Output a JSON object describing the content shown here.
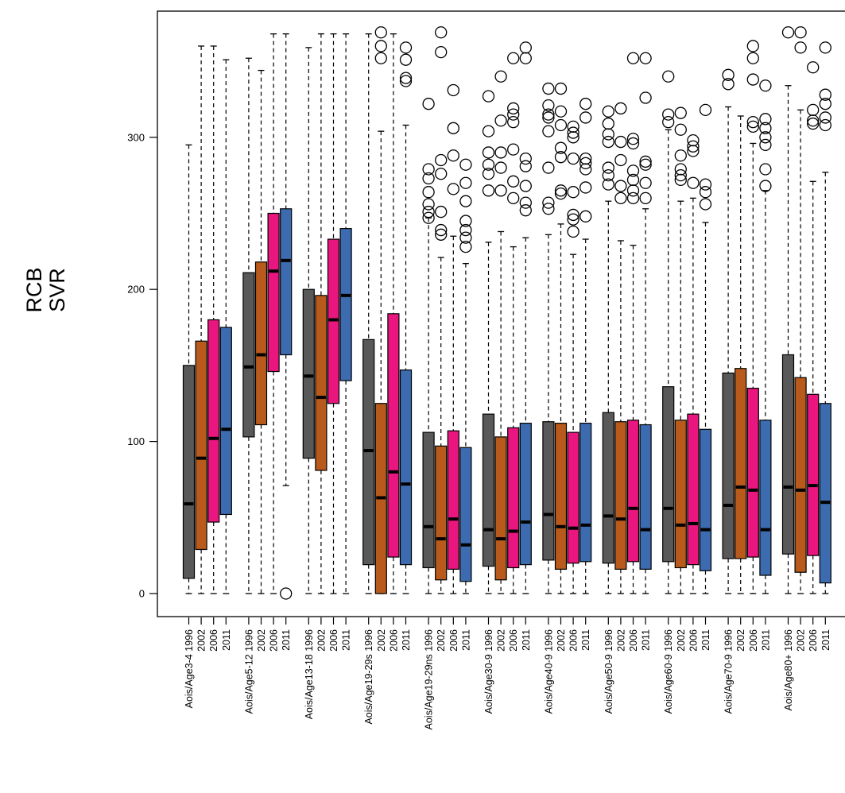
{
  "chart_data": {
    "type": "boxplot",
    "ylabel_lines": [
      "RCB",
      "SVR"
    ],
    "ylim": [
      -15,
      380
    ],
    "yticks": [
      0,
      100,
      200,
      300
    ],
    "series": [
      {
        "name": "1996",
        "color": "#595959"
      },
      {
        "name": "2002",
        "color": "#b85a1b"
      },
      {
        "name": "2006",
        "color": "#e8167e"
      },
      {
        "name": "2011",
        "color": "#3c6bb0"
      }
    ],
    "groups": [
      {
        "label": "Aois/Age3-4",
        "boxes": [
          {
            "year": "1996",
            "lw": 0,
            "q1": 10,
            "med": 59,
            "q3": 150,
            "uw": 295,
            "out": []
          },
          {
            "year": "2002",
            "lw": 0,
            "q1": 29,
            "med": 89,
            "q3": 166,
            "uw": 360,
            "out": []
          },
          {
            "year": "2006",
            "lw": 0,
            "q1": 47,
            "med": 102,
            "q3": 180,
            "uw": 360,
            "out": []
          },
          {
            "year": "2011",
            "lw": 0,
            "q1": 52,
            "med": 108,
            "q3": 175,
            "uw": 351,
            "out": []
          }
        ]
      },
      {
        "label": "Aois/Age5-12",
        "boxes": [
          {
            "year": "1996",
            "lw": 0,
            "q1": 103,
            "med": 149,
            "q3": 211,
            "uw": 352,
            "out": []
          },
          {
            "year": "2002",
            "lw": 0,
            "q1": 111,
            "med": 157,
            "q3": 218,
            "uw": 344,
            "out": []
          },
          {
            "year": "2006",
            "lw": 0,
            "q1": 146,
            "med": 212,
            "q3": 250,
            "uw": 368,
            "out": []
          },
          {
            "year": "2011",
            "lw": 71,
            "q1": 157,
            "med": 219,
            "q3": 253,
            "uw": 368,
            "out": [
              0
            ]
          }
        ]
      },
      {
        "label": "Aois/Age13-18",
        "boxes": [
          {
            "year": "1996",
            "lw": 0,
            "q1": 89,
            "med": 143,
            "q3": 200,
            "uw": 359,
            "out": []
          },
          {
            "year": "2002",
            "lw": 0,
            "q1": 81,
            "med": 129,
            "q3": 196,
            "uw": 368,
            "out": []
          },
          {
            "year": "2006",
            "lw": 0,
            "q1": 125,
            "med": 180,
            "q3": 233,
            "uw": 368,
            "out": []
          },
          {
            "year": "2011",
            "lw": 0,
            "q1": 140,
            "med": 196,
            "q3": 240,
            "uw": 368,
            "out": []
          }
        ]
      },
      {
        "label": "Aois/Age19-29s",
        "boxes": [
          {
            "year": "1996",
            "lw": 0,
            "q1": 19,
            "med": 94,
            "q3": 167,
            "uw": 368,
            "out": []
          },
          {
            "year": "2002",
            "lw": 0,
            "q1": 0,
            "med": 63,
            "q3": 125,
            "uw": 304,
            "out": [
              369,
              360,
              352
            ]
          },
          {
            "year": "2006",
            "lw": 0,
            "q1": 24,
            "med": 80,
            "q3": 184,
            "uw": 368,
            "out": []
          },
          {
            "year": "2011",
            "lw": 0,
            "q1": 19,
            "med": 72,
            "q3": 147,
            "uw": 308,
            "out": [
              359,
              351,
              339,
              337
            ]
          }
        ]
      },
      {
        "label": "Aois/Age19-29ns",
        "boxes": [
          {
            "year": "1996",
            "lw": 0,
            "q1": 17,
            "med": 44,
            "q3": 106,
            "uw": 247,
            "out": [
              322,
              279,
              273,
              264,
              256,
              251,
              247
            ]
          },
          {
            "year": "2002",
            "lw": 0,
            "q1": 9,
            "med": 36,
            "q3": 97,
            "uw": 221,
            "out": [
              369,
              356,
              285,
              276,
              251,
              239,
              236
            ]
          },
          {
            "year": "2006",
            "lw": 0,
            "q1": 16,
            "med": 49,
            "q3": 107,
            "uw": 235,
            "out": [
              331,
              306,
              288,
              266
            ]
          },
          {
            "year": "2011",
            "lw": 0,
            "q1": 8,
            "med": 32,
            "q3": 96,
            "uw": 217,
            "out": [
              282,
              270,
              258,
              245,
              239,
              234,
              228
            ]
          }
        ]
      },
      {
        "label": "Aois/Age30-9",
        "boxes": [
          {
            "year": "1996",
            "lw": 0,
            "q1": 18,
            "med": 42,
            "q3": 118,
            "uw": 231,
            "out": [
              327,
              304,
              290,
              282,
              276,
              265
            ]
          },
          {
            "year": "2002",
            "lw": 0,
            "q1": 9,
            "med": 36,
            "q3": 103,
            "uw": 238,
            "out": [
              340,
              311,
              290,
              280,
              265
            ]
          },
          {
            "year": "2006",
            "lw": 0,
            "q1": 17,
            "med": 41,
            "q3": 109,
            "uw": 228,
            "out": [
              352,
              319,
              315,
              310,
              292,
              271,
              260
            ]
          },
          {
            "year": "2011",
            "lw": 0,
            "q1": 19,
            "med": 47,
            "q3": 112,
            "uw": 234,
            "out": [
              359,
              352,
              286,
              281,
              268,
              257,
              252
            ]
          }
        ]
      },
      {
        "label": "Aois/Age40-9",
        "boxes": [
          {
            "year": "1996",
            "lw": 0,
            "q1": 22,
            "med": 52,
            "q3": 113,
            "uw": 236,
            "out": [
              332,
              321,
              315,
              313,
              304,
              280,
              257,
              253
            ]
          },
          {
            "year": "2002",
            "lw": 0,
            "q1": 16,
            "med": 44,
            "q3": 112,
            "uw": 243,
            "out": [
              332,
              317,
              308,
              293,
              287,
              265,
              263
            ]
          },
          {
            "year": "2006",
            "lw": 0,
            "q1": 20,
            "med": 43,
            "q3": 106,
            "uw": 223,
            "out": [
              307,
              303,
              300,
              286,
              264,
              249,
              246,
              238
            ]
          },
          {
            "year": "2011",
            "lw": 0,
            "q1": 21,
            "med": 45,
            "q3": 112,
            "uw": 233,
            "out": [
              322,
              313,
              286,
              283,
              279,
              267,
              248
            ]
          }
        ]
      },
      {
        "label": "Aois/Age50-9",
        "boxes": [
          {
            "year": "1996",
            "lw": 0,
            "q1": 20,
            "med": 51,
            "q3": 119,
            "uw": 258,
            "out": [
              317,
              309,
              302,
              297,
              280,
              275,
              269
            ]
          },
          {
            "year": "2002",
            "lw": 0,
            "q1": 16,
            "med": 49,
            "q3": 113,
            "uw": 232,
            "out": [
              319,
              297,
              285,
              268,
              260
            ]
          },
          {
            "year": "2006",
            "lw": 0,
            "q1": 21,
            "med": 56,
            "q3": 114,
            "uw": 229,
            "out": [
              352,
              299,
              296,
              278,
              272,
              265,
              260
            ]
          },
          {
            "year": "2011",
            "lw": 0,
            "q1": 16,
            "med": 42,
            "q3": 111,
            "uw": 253,
            "out": [
              352,
              326,
              284,
              282,
              270,
              260
            ]
          }
        ]
      },
      {
        "label": "Aois/Age60-9",
        "boxes": [
          {
            "year": "1996",
            "lw": 0,
            "q1": 21,
            "med": 56,
            "q3": 136,
            "uw": 305,
            "out": [
              340,
              315,
              310
            ]
          },
          {
            "year": "2002",
            "lw": 0,
            "q1": 17,
            "med": 45,
            "q3": 114,
            "uw": 258,
            "out": [
              316,
              305,
              288,
              279,
              275,
              272
            ]
          },
          {
            "year": "2006",
            "lw": 0,
            "q1": 19,
            "med": 46,
            "q3": 118,
            "uw": 260,
            "out": [
              298,
              294,
              291,
              270
            ]
          },
          {
            "year": "2011",
            "lw": 0,
            "q1": 15,
            "med": 42,
            "q3": 108,
            "uw": 244,
            "out": [
              318,
              269,
              264,
              256
            ]
          }
        ]
      },
      {
        "label": "Aois/Age70-9",
        "boxes": [
          {
            "year": "1996",
            "lw": 0,
            "q1": 23,
            "med": 58,
            "q3": 145,
            "uw": 320,
            "out": [
              341,
              335
            ]
          },
          {
            "year": "2002",
            "lw": 0,
            "q1": 23,
            "med": 70,
            "q3": 148,
            "uw": 314,
            "out": []
          },
          {
            "year": "2006",
            "lw": 0,
            "q1": 24,
            "med": 68,
            "q3": 135,
            "uw": 296,
            "out": [
              360,
              352,
              338,
              310,
              307
            ]
          },
          {
            "year": "2011",
            "lw": 0,
            "q1": 12,
            "med": 42,
            "q3": 114,
            "uw": 265,
            "out": [
              334,
              312,
              306,
              300,
              295,
              279,
              268
            ]
          }
        ]
      },
      {
        "label": "Aois/Age80+",
        "boxes": [
          {
            "year": "1996",
            "lw": 0,
            "q1": 26,
            "med": 70,
            "q3": 157,
            "uw": 334,
            "out": [
              369
            ]
          },
          {
            "year": "2002",
            "lw": 0,
            "q1": 14,
            "med": 68,
            "q3": 142,
            "uw": 318,
            "out": [
              369,
              359
            ]
          },
          {
            "year": "2006",
            "lw": 0,
            "q1": 25,
            "med": 71,
            "q3": 131,
            "uw": 271,
            "out": [
              346,
              318,
              311,
              309
            ]
          },
          {
            "year": "2011",
            "lw": 0,
            "q1": 7,
            "med": 60,
            "q3": 125,
            "uw": 277,
            "out": [
              359,
              328,
              322,
              313,
              308
            ]
          }
        ]
      }
    ]
  }
}
